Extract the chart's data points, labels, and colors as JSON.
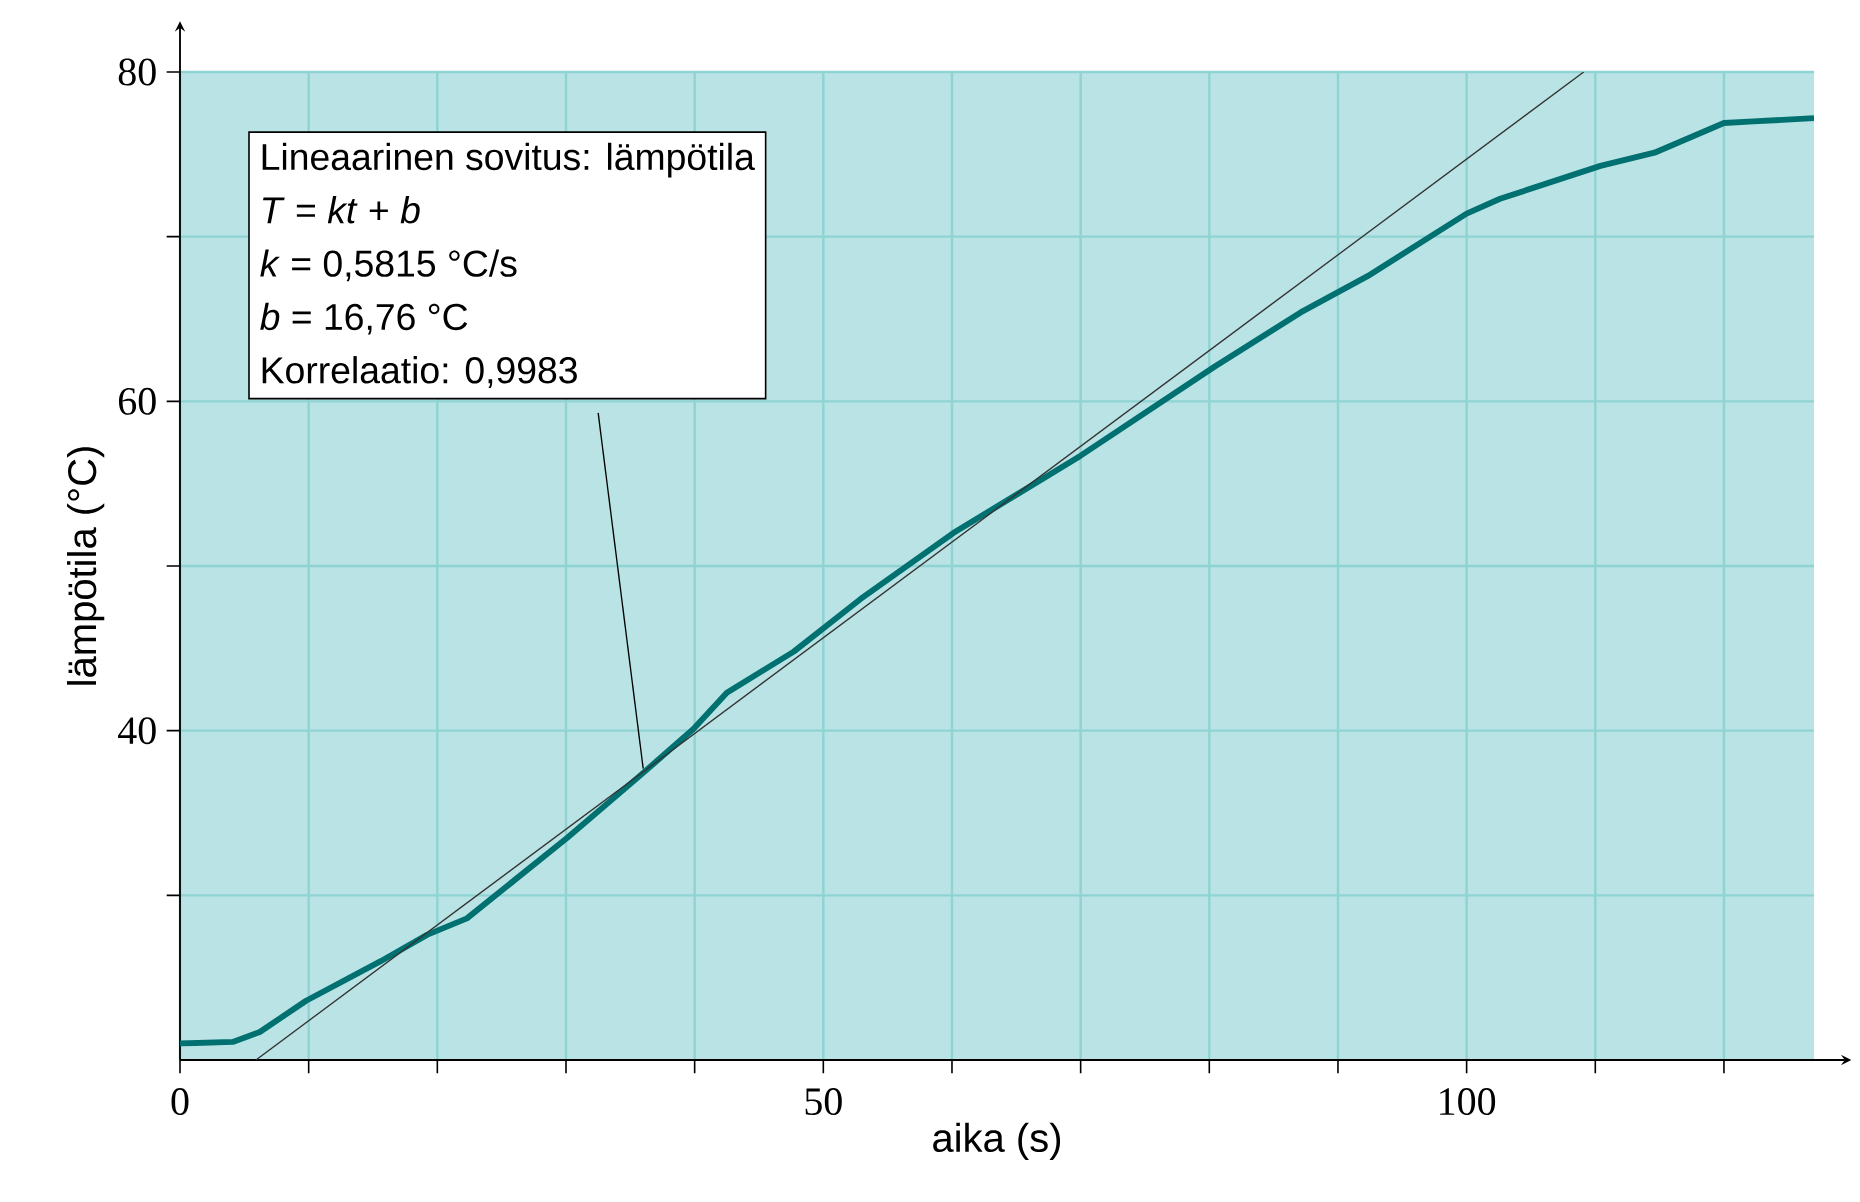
{
  "chart_data": {
    "type": "line",
    "xlabel": "aika (s)",
    "ylabel": "lämpötila (°C)",
    "xlim": [
      0,
      127
    ],
    "ylim": [
      20,
      80
    ],
    "xticks": [
      0,
      {
        "value": 10,
        "label": null
      },
      {
        "value": 20,
        "label": null
      },
      {
        "value": 30,
        "label": null
      },
      {
        "value": 40,
        "label": null
      },
      50,
      {
        "value": 60,
        "label": null
      },
      {
        "value": 70,
        "label": null
      },
      {
        "value": 80,
        "label": null
      },
      {
        "value": 90,
        "label": null
      },
      100,
      {
        "value": 110,
        "label": null
      },
      {
        "value": 120,
        "label": null
      }
    ],
    "yticks": [
      {
        "value": 30,
        "label": null
      },
      40,
      {
        "value": 50,
        "label": null
      },
      60,
      {
        "value": 70,
        "label": null
      },
      80
    ],
    "grid": true,
    "series": [
      {
        "color": "#007070",
        "x": [
          0,
          4.1,
          6.2,
          9.8,
          15.6,
          19.2,
          22.3,
          30.1,
          35.8,
          39.9,
          42.5,
          47.7,
          52.9,
          60.1,
          70.0,
          80.4,
          87.1,
          92.3,
          100.0,
          102.6,
          110.4,
          114.6,
          120.0,
          122.3,
          127
        ],
        "values": [
          21.0,
          21.1,
          21.7,
          23.6,
          26.0,
          27.6,
          28.6,
          33.5,
          37.3,
          40.1,
          42.3,
          44.8,
          48.0,
          52.0,
          56.7,
          62.1,
          65.4,
          67.6,
          71.4,
          72.3,
          74.3,
          75.1,
          76.9,
          77.0,
          77.2
        ]
      },
      {
        "type": "line",
        "color": "#333333",
        "x": [
          5.9,
          109.1
        ],
        "values": [
          20.0,
          80.0
        ]
      }
    ],
    "annotations": [
      "Lineaarinen sovitus: lämpötila",
      "*T* = *kt* + *b*",
      "*k* = 0,5815 °C/s",
      "*b* = 16,76 °C",
      {
        "text": "Korrelaatio: 0,9983",
        "x": 36.0,
        "y": 37.7
      }
    ]
  }
}
